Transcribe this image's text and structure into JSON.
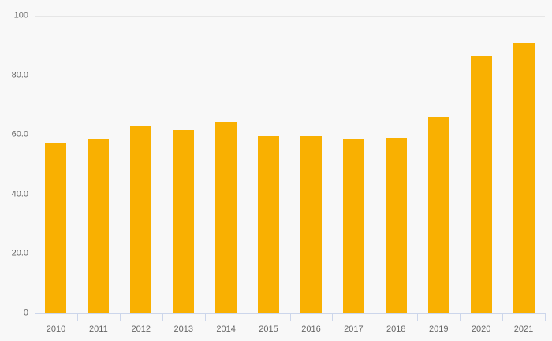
{
  "chart_data": {
    "type": "bar",
    "title": "",
    "xlabel": "",
    "ylabel": "",
    "categories": [
      "2010",
      "2011",
      "2012",
      "2013",
      "2014",
      "2015",
      "2016",
      "2017",
      "2018",
      "2019",
      "2020",
      "2021"
    ],
    "values": [
      57.2,
      58.6,
      62.8,
      61.6,
      64.3,
      59.5,
      59.4,
      58.7,
      59.0,
      65.9,
      86.6,
      91.0
    ],
    "ylim": [
      0,
      100
    ],
    "y_ticks": [
      0,
      20,
      40,
      60,
      80,
      100
    ],
    "y_tick_labels": [
      "0",
      "20.0",
      "40.0",
      "60.0",
      "80.0",
      "100"
    ],
    "grid": "horizontal-only",
    "legend": "none",
    "colors": {
      "bar": "#F9B001",
      "background": "#F8F8F8",
      "gridline": "#E6E6E6",
      "axis_line": "#CCD6EB",
      "tick": "#CCD6EB",
      "label_text": "#666666"
    }
  }
}
